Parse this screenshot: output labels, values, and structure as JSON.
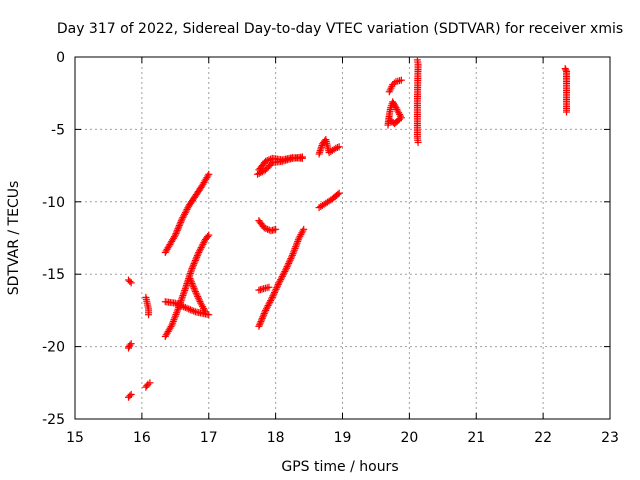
{
  "chart_data": {
    "type": "scatter",
    "title": "Day 317 of 2022, Sidereal Day-to-day VTEC variation (SDTVAR) for receiver xmis",
    "xlabel": "GPS time / hours",
    "ylabel": "SDTVAR / TECUs",
    "xlim": [
      15,
      23
    ],
    "ylim": [
      -25,
      0
    ],
    "xticks": [
      15,
      16,
      17,
      18,
      19,
      20,
      21,
      22,
      23
    ],
    "yticks": [
      0,
      -5,
      -10,
      -15,
      -20,
      -25
    ],
    "xtick_labels": [
      "15",
      "16",
      "17",
      "18",
      "19",
      "20",
      "21",
      "22",
      "23"
    ],
    "ytick_labels": [
      "0",
      "-5",
      "-10",
      "-15",
      "-20",
      "-25"
    ],
    "grid": true,
    "marker": "+",
    "marker_color": "#ff0000",
    "segments": [
      [
        [
          15.8,
          -15.4
        ],
        [
          15.82,
          -15.5
        ],
        [
          15.84,
          -15.6
        ]
      ],
      [
        [
          15.8,
          -20.1
        ],
        [
          15.82,
          -19.9
        ],
        [
          15.84,
          -19.8
        ]
      ],
      [
        [
          15.8,
          -23.5
        ],
        [
          15.82,
          -23.4
        ],
        [
          15.84,
          -23.3
        ]
      ],
      [
        [
          16.06,
          -16.6
        ],
        [
          16.08,
          -17.0
        ],
        [
          16.1,
          -17.4
        ],
        [
          16.1,
          -17.8
        ]
      ],
      [
        [
          16.06,
          -22.8
        ],
        [
          16.09,
          -22.6
        ],
        [
          16.12,
          -22.5
        ]
      ],
      [
        [
          16.35,
          -13.5
        ],
        [
          16.5,
          -12.3
        ],
        [
          16.6,
          -11.2
        ],
        [
          16.7,
          -10.3
        ],
        [
          16.8,
          -9.6
        ],
        [
          16.9,
          -8.9
        ],
        [
          17.0,
          -8.1
        ]
      ],
      [
        [
          16.35,
          -19.3
        ],
        [
          16.45,
          -18.5
        ],
        [
          16.55,
          -17.3
        ],
        [
          16.65,
          -16.0
        ],
        [
          16.75,
          -14.6
        ],
        [
          16.85,
          -13.5
        ],
        [
          16.95,
          -12.6
        ],
        [
          17.0,
          -12.3
        ]
      ],
      [
        [
          16.35,
          -16.9
        ],
        [
          16.5,
          -17.0
        ],
        [
          16.65,
          -17.3
        ],
        [
          16.8,
          -17.6
        ],
        [
          16.9,
          -17.7
        ],
        [
          17.0,
          -17.8
        ]
      ],
      [
        [
          16.72,
          -15.3
        ],
        [
          16.8,
          -16.2
        ],
        [
          16.88,
          -17.0
        ],
        [
          16.95,
          -17.6
        ]
      ],
      [
        [
          17.73,
          -8.1
        ],
        [
          17.85,
          -7.8
        ],
        [
          17.95,
          -7.3
        ],
        [
          18.1,
          -7.2
        ],
        [
          18.25,
          -7.0
        ],
        [
          18.4,
          -6.9
        ]
      ],
      [
        [
          17.75,
          -7.8
        ],
        [
          17.85,
          -7.2
        ],
        [
          17.95,
          -7.0
        ],
        [
          18.1,
          -7.1
        ],
        [
          18.25,
          -6.95
        ],
        [
          18.4,
          -7.0
        ]
      ],
      [
        [
          17.75,
          -11.3
        ],
        [
          17.83,
          -11.8
        ],
        [
          17.93,
          -12.0
        ],
        [
          18.0,
          -11.9
        ]
      ],
      [
        [
          17.75,
          -16.1
        ],
        [
          17.82,
          -16.0
        ],
        [
          17.9,
          -15.9
        ]
      ],
      [
        [
          17.75,
          -18.6
        ],
        [
          17.85,
          -17.5
        ],
        [
          17.95,
          -16.6
        ],
        [
          18.05,
          -15.6
        ],
        [
          18.15,
          -14.7
        ],
        [
          18.25,
          -13.7
        ],
        [
          18.35,
          -12.5
        ],
        [
          18.42,
          -11.9
        ]
      ],
      [
        [
          18.65,
          -6.7
        ],
        [
          18.7,
          -6.0
        ],
        [
          18.75,
          -5.7
        ],
        [
          18.8,
          -6.6
        ],
        [
          18.9,
          -6.3
        ],
        [
          18.95,
          -6.2
        ]
      ],
      [
        [
          18.65,
          -10.4
        ],
        [
          18.75,
          -10.1
        ],
        [
          18.85,
          -9.8
        ],
        [
          18.95,
          -9.4
        ]
      ],
      [
        [
          19.68,
          -4.7
        ],
        [
          19.7,
          -4.0
        ],
        [
          19.72,
          -3.5
        ],
        [
          19.75,
          -3.1
        ],
        [
          19.8,
          -3.5
        ],
        [
          19.88,
          -4.2
        ]
      ],
      [
        [
          19.7,
          -2.4
        ],
        [
          19.75,
          -1.9
        ],
        [
          19.8,
          -1.7
        ],
        [
          19.88,
          -1.6
        ]
      ],
      [
        [
          19.72,
          -4.4
        ],
        [
          19.78,
          -4.6
        ],
        [
          19.85,
          -4.3
        ]
      ],
      [
        [
          20.12,
          -0.2
        ],
        [
          20.13,
          -0.5
        ],
        [
          20.12,
          -3.1
        ],
        [
          20.12,
          -5.6
        ],
        [
          20.13,
          -5.9
        ]
      ],
      [
        [
          22.33,
          -0.8
        ],
        [
          22.35,
          -1.0
        ],
        [
          22.35,
          -1.7
        ],
        [
          22.35,
          -3.8
        ]
      ]
    ]
  }
}
